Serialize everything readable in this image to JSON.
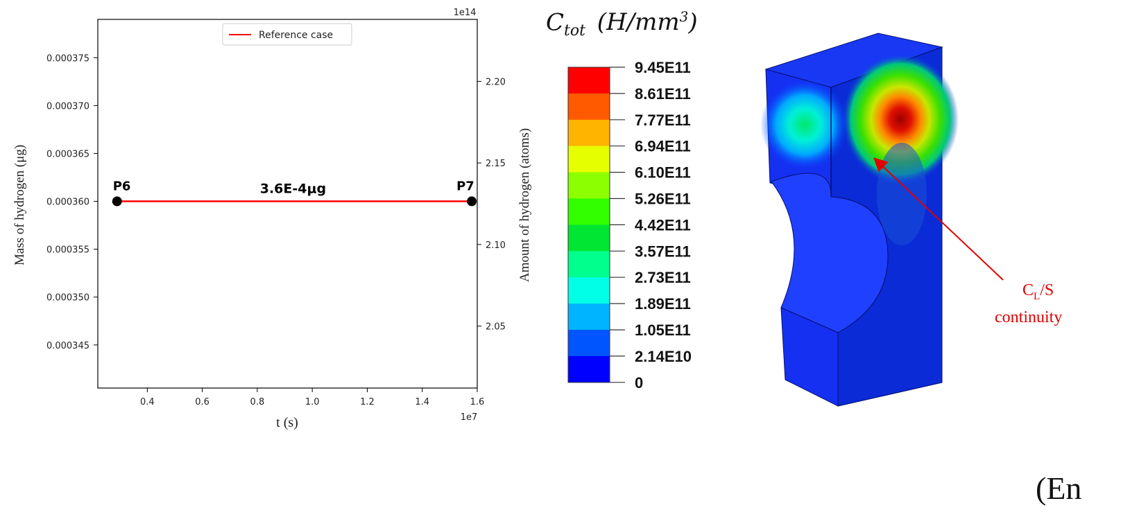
{
  "chart_data": {
    "type": "line",
    "title": "",
    "xlabel": "t (s)",
    "ylabel_left": "Mass of hydrogen (μg)",
    "ylabel_right": "Amount of hydrogen (atoms)",
    "x_offset_label": "1e7",
    "y_right_offset_label": "1e14",
    "xlim": [
      0.22,
      1.6
    ],
    "ylim_left": [
      0.0003405,
      0.000379
    ],
    "ylim_right": [
      2.012,
      2.238
    ],
    "x_ticks": [
      0.4,
      0.6,
      0.8,
      1.0,
      1.2,
      1.4,
      1.6
    ],
    "x_tick_labels": [
      "0.4",
      "0.6",
      "0.8",
      "1.0",
      "1.2",
      "1.4",
      "1.6"
    ],
    "y_left_ticks": [
      0.000345,
      0.00035,
      0.000355,
      0.00036,
      0.000365,
      0.00037,
      0.000375
    ],
    "y_left_tick_labels": [
      "0.000345",
      "0.000350",
      "0.000355",
      "0.000360",
      "0.000365",
      "0.000370",
      "0.000375"
    ],
    "y_right_ticks": [
      2.05,
      2.1,
      2.15,
      2.2
    ],
    "y_right_tick_labels": [
      "2.05",
      "2.10",
      "2.15",
      "2.20"
    ],
    "grid": false,
    "legend_position": "top-center",
    "series": [
      {
        "name": "Reference case",
        "color": "#ff0000",
        "x": [
          0.29,
          1.58
        ],
        "values": [
          0.00036,
          0.00036
        ]
      }
    ],
    "points": [
      {
        "label": "P6",
        "x": 0.29,
        "y": 0.00036
      },
      {
        "label": "P7",
        "x": 1.58,
        "y": 0.00036
      }
    ],
    "annotation": "3.6E-4μg"
  },
  "colorbar": {
    "title_var": "C",
    "title_sub": "tot",
    "title_unit": "(H/mm",
    "title_exp": "3",
    "title_close": ")",
    "labels": [
      "9.45E11",
      "8.61E11",
      "7.77E11",
      "6.94E11",
      "6.10E11",
      "5.26E11",
      "4.42E11",
      "3.57E11",
      "2.73E11",
      "1.89E11",
      "1.05E11",
      "2.14E10",
      "0"
    ],
    "colors": [
      "#ff0000",
      "#ff5a00",
      "#ffb400",
      "#e6ff00",
      "#8cff00",
      "#32ff00",
      "#00e632",
      "#00ff8c",
      "#00ffe6",
      "#00b4ff",
      "#0055ff",
      "#0000ff"
    ]
  },
  "model_annotation": {
    "line1_main": "C",
    "line1_sub": "L",
    "line1_rest": "/S",
    "line2": "continuity",
    "color": "#e00000"
  },
  "corner_text": "(En"
}
